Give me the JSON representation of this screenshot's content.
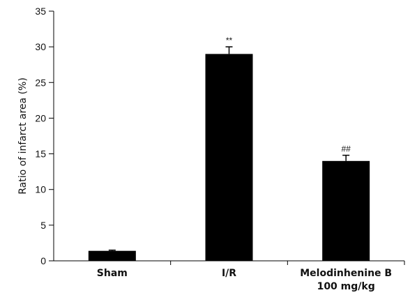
{
  "chart_data": {
    "type": "bar",
    "title": "",
    "xlabel": "",
    "ylabel": "Ratio of infarct area (%)",
    "ylim": [
      0,
      35
    ],
    "yticks": [
      0,
      5,
      10,
      15,
      20,
      25,
      30,
      35
    ],
    "categories": [
      [
        "Sham"
      ],
      [
        "I/R"
      ],
      [
        "Melodinhenine B",
        "100 mg/kg"
      ]
    ],
    "values": [
      1.4,
      29.0,
      14.0
    ],
    "errors": [
      0.1,
      1.0,
      0.8
    ],
    "significance": [
      "",
      "**",
      "##"
    ],
    "bar_color": "#000000",
    "grid": false,
    "legend": "none"
  }
}
